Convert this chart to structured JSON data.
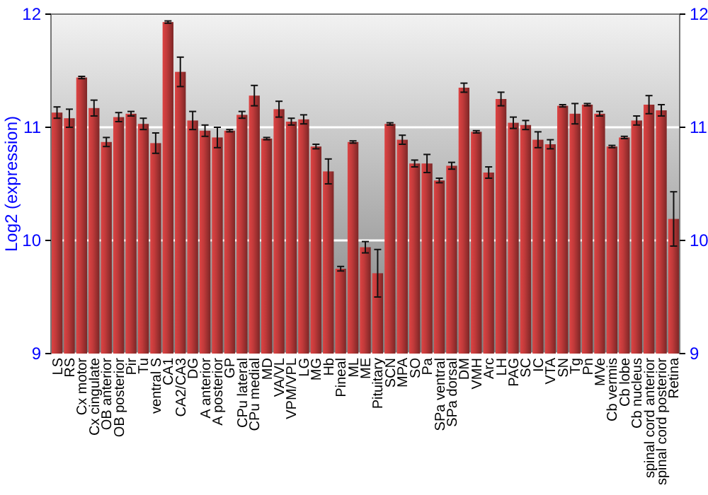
{
  "chart_data": {
    "type": "bar",
    "ylabel": "Log2 (expression)",
    "categories": [
      "LS",
      "RS",
      "Cx motor",
      "Cx cingulate",
      "OB anterior",
      "OB posterior",
      "Pir",
      "Tu",
      "ventral S",
      "CA1",
      "CA2/CA3",
      "DG",
      "A anterior",
      "A posterior",
      "GP",
      "CPu lateral",
      "CPu medial",
      "MD",
      "VA/VL",
      "VPM/VPL",
      "LG",
      "MG",
      "Hb",
      "Pineal",
      "ML",
      "ME",
      "Pituitary",
      "SCN",
      "MPA",
      "SO",
      "Pa",
      "SPa ventral",
      "SPa dorsal",
      "DM",
      "VMH",
      "Arc",
      "LH",
      "PAG",
      "SC",
      "IC",
      "VTA",
      "SN",
      "Tg",
      "Pn",
      "MVe",
      "Cb vermis",
      "Cb lobe",
      "Cb nucleus",
      "spinal cord anterior",
      "spinal cord posterior",
      "Retina"
    ],
    "values": [
      11.13,
      11.08,
      11.44,
      11.17,
      10.87,
      11.09,
      11.12,
      11.03,
      10.86,
      11.93,
      11.49,
      11.06,
      10.97,
      10.91,
      10.97,
      11.11,
      11.28,
      10.9,
      11.16,
      11.05,
      11.07,
      10.83,
      10.61,
      9.75,
      10.87,
      9.94,
      9.71,
      11.03,
      10.89,
      10.68,
      10.68,
      10.53,
      10.66,
      11.35,
      10.96,
      10.6,
      11.25,
      11.04,
      11.02,
      10.89,
      10.85,
      11.19,
      11.12,
      11.2,
      11.12,
      10.83,
      10.91,
      11.06,
      11.2,
      11.15,
      10.19
    ],
    "errors": [
      0.05,
      0.08,
      0.01,
      0.07,
      0.04,
      0.04,
      0.02,
      0.05,
      0.09,
      0.01,
      0.13,
      0.08,
      0.05,
      0.09,
      0.01,
      0.03,
      0.09,
      0.01,
      0.07,
      0.03,
      0.04,
      0.02,
      0.11,
      0.02,
      0.01,
      0.05,
      0.21,
      0.01,
      0.04,
      0.03,
      0.08,
      0.02,
      0.03,
      0.04,
      0.01,
      0.05,
      0.06,
      0.05,
      0.04,
      0.07,
      0.04,
      0.01,
      0.09,
      0.01,
      0.02,
      0.01,
      0.01,
      0.04,
      0.08,
      0.05,
      0.24
    ],
    "color": "#c03a3a",
    "ylim": [
      9,
      12
    ],
    "yticks": [
      9,
      10,
      11,
      12
    ],
    "y2lim": [
      9,
      12
    ],
    "y2ticks": [
      9,
      10,
      11,
      12
    ],
    "grid": "y"
  }
}
